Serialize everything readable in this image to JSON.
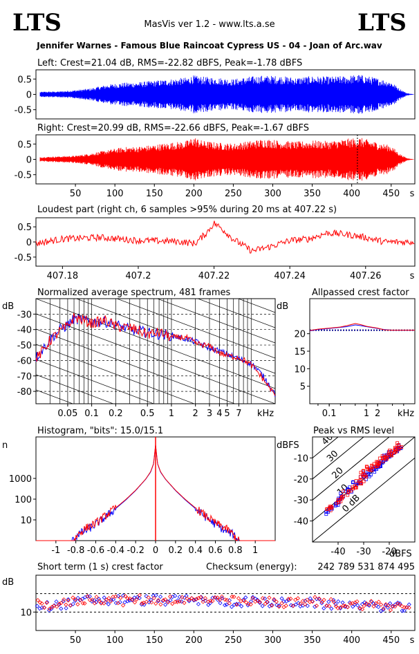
{
  "header": {
    "logo_left": "LTS",
    "logo_right": "LTS",
    "app_title": "MasVis ver 1.2 - www.lts.a.se",
    "file_name": "Jennifer Warnes - Famous Blue Raincoat Cypress US - 04 - Joan of Arc.wav"
  },
  "colors": {
    "left": "#0000ff",
    "right": "#ff0000",
    "frame": "#000000"
  },
  "chart_data": [
    {
      "id": "left_waveform",
      "type": "line",
      "title": "Left: Crest=21.04 dB, RMS=-22.82 dBFS, Peak=-1.78 dBFS",
      "color": "#0000ff",
      "ylim": [
        -0.8,
        0.8
      ],
      "yticks": [
        0.5,
        0,
        -0.5
      ],
      "ytick_labels": [
        "0.5",
        "0",
        "-0.5"
      ],
      "xlim": [
        0,
        480
      ],
      "envelope_x": [
        0,
        5,
        10,
        30,
        50,
        70,
        90,
        110,
        130,
        150,
        170,
        190,
        200,
        210,
        230,
        250,
        270,
        290,
        310,
        330,
        350,
        370,
        390,
        410,
        430,
        450,
        460,
        470,
        480
      ],
      "envelope_y": [
        0.02,
        0.08,
        0.09,
        0.1,
        0.14,
        0.2,
        0.32,
        0.38,
        0.4,
        0.45,
        0.5,
        0.55,
        0.62,
        0.58,
        0.55,
        0.5,
        0.58,
        0.62,
        0.6,
        0.55,
        0.6,
        0.58,
        0.6,
        0.65,
        0.55,
        0.42,
        0.2,
        0.04,
        0.0
      ]
    },
    {
      "id": "right_waveform",
      "type": "line",
      "title": "Right: Crest=20.99 dB, RMS=-22.66 dBFS, Peak=-1.67 dBFS",
      "color": "#ff0000",
      "ylim": [
        -0.8,
        0.8
      ],
      "yticks": [
        0.5,
        0,
        -0.5
      ],
      "ytick_labels": [
        "0.5",
        "0",
        "-0.5"
      ],
      "xlim": [
        0,
        480
      ],
      "xticks": [
        50,
        100,
        150,
        200,
        250,
        300,
        350,
        400,
        450
      ],
      "xtick_labels": [
        "50",
        "100",
        "150",
        "200",
        "250",
        "300",
        "350",
        "400",
        "450"
      ],
      "x_unit": "s",
      "marker_x": 407.22,
      "envelope_x": [
        0,
        5,
        10,
        30,
        50,
        70,
        90,
        110,
        130,
        150,
        170,
        190,
        200,
        210,
        230,
        250,
        270,
        290,
        310,
        330,
        350,
        370,
        390,
        410,
        430,
        450,
        460,
        470,
        480
      ],
      "envelope_y": [
        0.02,
        0.07,
        0.08,
        0.1,
        0.12,
        0.2,
        0.3,
        0.4,
        0.42,
        0.48,
        0.55,
        0.6,
        0.75,
        0.62,
        0.55,
        0.52,
        0.6,
        0.68,
        0.62,
        0.58,
        0.62,
        0.6,
        0.66,
        0.72,
        0.58,
        0.45,
        0.2,
        0.04,
        0.0
      ]
    },
    {
      "id": "loudest_part",
      "type": "line",
      "title": "Loudest part (right ch, 6 samples >95% during 20 ms at 407.22 s)",
      "color": "#ff0000",
      "ylim": [
        -0.8,
        0.8
      ],
      "yticks": [
        0.5,
        0,
        -0.5
      ],
      "ytick_labels": [
        "0.5",
        "0",
        "-0.5"
      ],
      "xlim": [
        407.173,
        407.273
      ],
      "xticks": [
        407.18,
        407.2,
        407.22,
        407.24,
        407.26
      ],
      "xtick_labels": [
        "407.18",
        "407.2",
        "407.22",
        "407.24",
        "407.26"
      ],
      "x_unit": "s",
      "x": [
        407.173,
        407.18,
        407.19,
        407.2,
        407.21,
        407.215,
        407.218,
        407.22,
        407.222,
        407.225,
        407.23,
        407.235,
        407.24,
        407.245,
        407.25,
        407.255,
        407.26,
        407.265,
        407.273
      ],
      "y": [
        -0.05,
        0.1,
        0.15,
        0.05,
        0.02,
        -0.05,
        0.3,
        0.62,
        0.45,
        0.1,
        -0.3,
        -0.15,
        0.05,
        0.1,
        0.3,
        0.25,
        0.15,
        0.0,
        0.0
      ]
    },
    {
      "id": "avg_spectrum",
      "type": "line",
      "title": "Normalized average spectrum, 481 frames",
      "ylabel": "dB",
      "x_scale": "log",
      "x_unit": "kHz",
      "xlim": [
        0.02,
        20
      ],
      "ylim": [
        -88,
        -20
      ],
      "yticks": [
        -30,
        -40,
        -50,
        -60,
        -70,
        -80
      ],
      "ytick_labels": [
        "-30",
        "-40",
        "-50",
        "-60",
        "-70",
        "-80"
      ],
      "xticks": [
        0.05,
        0.1,
        0.2,
        0.5,
        1,
        2,
        3,
        4,
        5,
        7
      ],
      "xtick_labels": [
        "0.05",
        "0.1",
        "0.2",
        "0.5",
        "1",
        "2",
        "3",
        "4",
        "5",
        "7"
      ],
      "x": [
        0.02,
        0.025,
        0.03,
        0.04,
        0.05,
        0.06,
        0.08,
        0.1,
        0.15,
        0.2,
        0.3,
        0.5,
        0.7,
        1,
        1.5,
        2,
        3,
        4,
        5,
        7,
        10,
        15,
        20
      ],
      "series": [
        {
          "channel": "left",
          "color": "#0000ff",
          "values": [
            -58,
            -52,
            -46,
            -40,
            -37,
            -33,
            -34,
            -35,
            -35,
            -37,
            -40,
            -42,
            -43,
            -44,
            -46,
            -48,
            -52,
            -54,
            -56,
            -59,
            -62,
            -72,
            -82
          ]
        },
        {
          "channel": "right",
          "color": "#ff0000",
          "values": [
            -59,
            -53,
            -47,
            -41,
            -38,
            -32,
            -34,
            -36,
            -34,
            -38,
            -39,
            -43,
            -42,
            -45,
            -45,
            -49,
            -51,
            -55,
            -57,
            -58,
            -63,
            -74,
            -83
          ]
        }
      ]
    },
    {
      "id": "allpassed_crest",
      "type": "line",
      "title": "Allpassed crest factor",
      "ylabel": "dB",
      "x_scale": "log",
      "x_unit": "kHz",
      "xlim": [
        0.03,
        20
      ],
      "ylim": [
        0,
        30
      ],
      "yticks": [
        20,
        15,
        10,
        5
      ],
      "ytick_labels": [
        "20",
        "15",
        "10",
        "5"
      ],
      "xticks": [
        0.1,
        1,
        2
      ],
      "xtick_labels": [
        "0.1",
        "1",
        "2"
      ],
      "reference_y": 21,
      "x": [
        0.03,
        0.05,
        0.1,
        0.2,
        0.3,
        0.5,
        0.7,
        1,
        2,
        3,
        5,
        10,
        20
      ],
      "series": [
        {
          "channel": "left",
          "color": "#0000ff",
          "values": [
            20.8,
            21.2,
            21.5,
            21.8,
            22.0,
            22.5,
            22.3,
            22.0,
            21.5,
            21.2,
            21.0,
            21.0,
            21.0
          ]
        },
        {
          "channel": "right",
          "color": "#ff0000",
          "values": [
            20.9,
            21.3,
            21.6,
            21.9,
            22.3,
            22.9,
            22.6,
            22.1,
            21.6,
            21.1,
            21.0,
            21.0,
            21.0
          ]
        }
      ]
    },
    {
      "id": "histogram",
      "type": "line",
      "title": "Histogram, \"bits\": 15.0/15.1",
      "ylabel": "n",
      "y_scale": "log",
      "xlim": [
        -1.2,
        1.2
      ],
      "ylim": [
        1,
        100000
      ],
      "yticks": [
        1000,
        100,
        10
      ],
      "ytick_labels": [
        "1000",
        "100",
        "10"
      ],
      "xticks": [
        -1,
        -0.8,
        -0.6,
        -0.4,
        -0.2,
        0,
        0.2,
        0.4,
        0.6,
        0.8,
        1
      ],
      "xtick_labels": [
        "-1",
        "-0.8",
        "-0.6",
        "-0.4",
        "-0.2",
        "0",
        "0.2",
        "0.4",
        "0.6",
        "0.8",
        "1"
      ],
      "x": [
        -0.82,
        -0.78,
        -0.7,
        -0.6,
        -0.5,
        -0.4,
        -0.3,
        -0.2,
        -0.1,
        -0.05,
        -0.02,
        0,
        0.02,
        0.05,
        0.1,
        0.2,
        0.3,
        0.4,
        0.5,
        0.6,
        0.7,
        0.78,
        0.82
      ],
      "series": [
        {
          "channel": "left",
          "color": "#0000ff",
          "values": [
            1,
            2,
            3,
            6,
            14,
            35,
            90,
            260,
            900,
            2000,
            5000,
            40000,
            5000,
            2000,
            900,
            260,
            90,
            35,
            14,
            6,
            3,
            2,
            1
          ]
        },
        {
          "channel": "right",
          "color": "#ff0000",
          "values": [
            1,
            2,
            4,
            7,
            16,
            38,
            95,
            270,
            920,
            2100,
            5200,
            42000,
            5200,
            2100,
            920,
            270,
            95,
            38,
            16,
            7,
            4,
            2,
            1
          ]
        }
      ]
    },
    {
      "id": "peak_vs_rms",
      "type": "scatter",
      "title": "Peak vs RMS level",
      "ylabel": "dBFS",
      "xlabel": "dBFS",
      "xlim": [
        -50,
        -10
      ],
      "ylim": [
        -50,
        0
      ],
      "xticks": [
        -40,
        -30,
        -20
      ],
      "xtick_labels": [
        "-40",
        "-30",
        "-20"
      ],
      "yticks": [
        -10,
        -20,
        -30,
        -40
      ],
      "ytick_labels": [
        "-10",
        "-20",
        "-30",
        "-40"
      ],
      "crest_lines": [
        0,
        10,
        20,
        30,
        40
      ],
      "crest_labels": [
        "0 dB",
        "10",
        "20",
        "30",
        "40"
      ],
      "points": [
        {
          "channel": "left",
          "x": [
            -45,
            -43,
            -41,
            -40,
            -38,
            -36,
            -35,
            -33,
            -32,
            -30,
            -29,
            -28,
            -27,
            -26,
            -25,
            -24,
            -23,
            -22,
            -21,
            -20,
            -19,
            -18,
            -17,
            -16
          ],
          "y": [
            -36,
            -34,
            -32,
            -30,
            -28,
            -26,
            -25,
            -22,
            -21,
            -19,
            -18,
            -17,
            -16,
            -15,
            -14,
            -13,
            -12,
            -11,
            -10,
            -9,
            -8,
            -7,
            -6,
            -5
          ]
        },
        {
          "channel": "right",
          "x": [
            -44,
            -42,
            -40,
            -39,
            -37,
            -35,
            -34,
            -32,
            -31,
            -30,
            -29,
            -28,
            -27,
            -26,
            -25,
            -24,
            -23,
            -22,
            -21,
            -20,
            -19,
            -18,
            -17,
            -16
          ],
          "y": [
            -35,
            -33,
            -31,
            -29,
            -27,
            -25,
            -23,
            -21,
            -20,
            -18,
            -17,
            -15,
            -15,
            -14,
            -13,
            -12,
            -11,
            -10,
            -9,
            -8,
            -7,
            -6,
            -5,
            -4
          ]
        }
      ]
    },
    {
      "id": "short_term_crest",
      "type": "scatter",
      "title": "Short term (1 s) crest factor",
      "checksum_label": "Checksum (energy):",
      "checksum_value": "242 789 531 874 495",
      "ylabel": "dB",
      "xlim": [
        0,
        480
      ],
      "ylim": [
        0,
        30
      ],
      "yticks": [
        10
      ],
      "ytick_labels": [
        "10"
      ],
      "dashed_y": [
        10,
        20
      ],
      "xticks": [
        50,
        100,
        150,
        200,
        250,
        300,
        350,
        400,
        450
      ],
      "xtick_labels": [
        "50",
        "100",
        "150",
        "200",
        "250",
        "300",
        "350",
        "400",
        "450"
      ],
      "x_unit": "s",
      "x": [
        10,
        30,
        50,
        70,
        90,
        110,
        130,
        150,
        170,
        190,
        210,
        230,
        250,
        270,
        290,
        310,
        330,
        350,
        370,
        390,
        410,
        430,
        450,
        470
      ],
      "series": [
        {
          "channel": "left",
          "color": "#0000ff",
          "values": [
            13,
            14,
            15,
            17,
            16,
            17,
            16,
            17,
            16,
            17,
            16,
            16,
            15,
            16,
            15,
            15,
            15,
            15,
            14,
            14,
            14,
            13,
            13,
            12
          ]
        },
        {
          "channel": "right",
          "color": "#ff0000",
          "values": [
            14,
            14,
            16,
            17,
            17,
            16,
            17,
            16,
            17,
            16,
            17,
            16,
            16,
            15,
            16,
            15,
            15,
            16,
            15,
            14,
            14,
            14,
            13,
            13
          ]
        }
      ]
    }
  ]
}
